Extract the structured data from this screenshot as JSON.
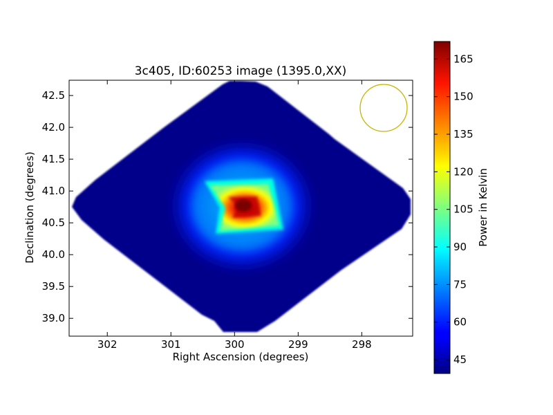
{
  "chart_data": {
    "type": "heatmap",
    "title": "3c405, ID:60253 image (1395.0,XX)",
    "xlabel": "Right Ascension (degrees)",
    "ylabel": "Declination (degrees)",
    "colorbar_label": "Power in Kelvin",
    "xlim": [
      302.6,
      297.2
    ],
    "ylim": [
      38.72,
      42.74
    ],
    "x_inverted": true,
    "x_ticks": [
      302,
      301,
      300,
      299,
      298
    ],
    "x_tick_labels": [
      "302",
      "301",
      "300",
      "299",
      "298"
    ],
    "y_ticks": [
      39.0,
      39.5,
      40.0,
      40.5,
      41.0,
      41.5,
      42.0,
      42.5
    ],
    "y_tick_labels": [
      "39.0",
      "39.5",
      "40.0",
      "40.5",
      "41.0",
      "41.5",
      "42.0",
      "42.5"
    ],
    "colorbar_range": [
      39.5,
      172
    ],
    "colorbar_ticks": [
      45,
      60,
      75,
      90,
      105,
      120,
      135,
      150,
      165
    ],
    "colorbar_tick_labels": [
      "45",
      "60",
      "75",
      "90",
      "105",
      "120",
      "135",
      "150",
      "165"
    ],
    "colormap": "jet",
    "map_footprint": {
      "shape": "diamond",
      "center_ra": 299.9,
      "center_dec": 40.75,
      "half_width_ra": 2.6,
      "half_height_dec": 2.0,
      "background_level": 42
    },
    "peak": {
      "ra": 299.88,
      "dec": 40.75,
      "max_value": 172,
      "mid_value": 135,
      "outer_value": 100,
      "halo_value": 60
    },
    "beam_circle": {
      "center_ra": 297.65,
      "center_dec": 42.3,
      "radius_dec": 0.37,
      "color": "#c8b400"
    },
    "colors": {
      "background": "#00007f",
      "plot_frame": "#000000"
    }
  }
}
